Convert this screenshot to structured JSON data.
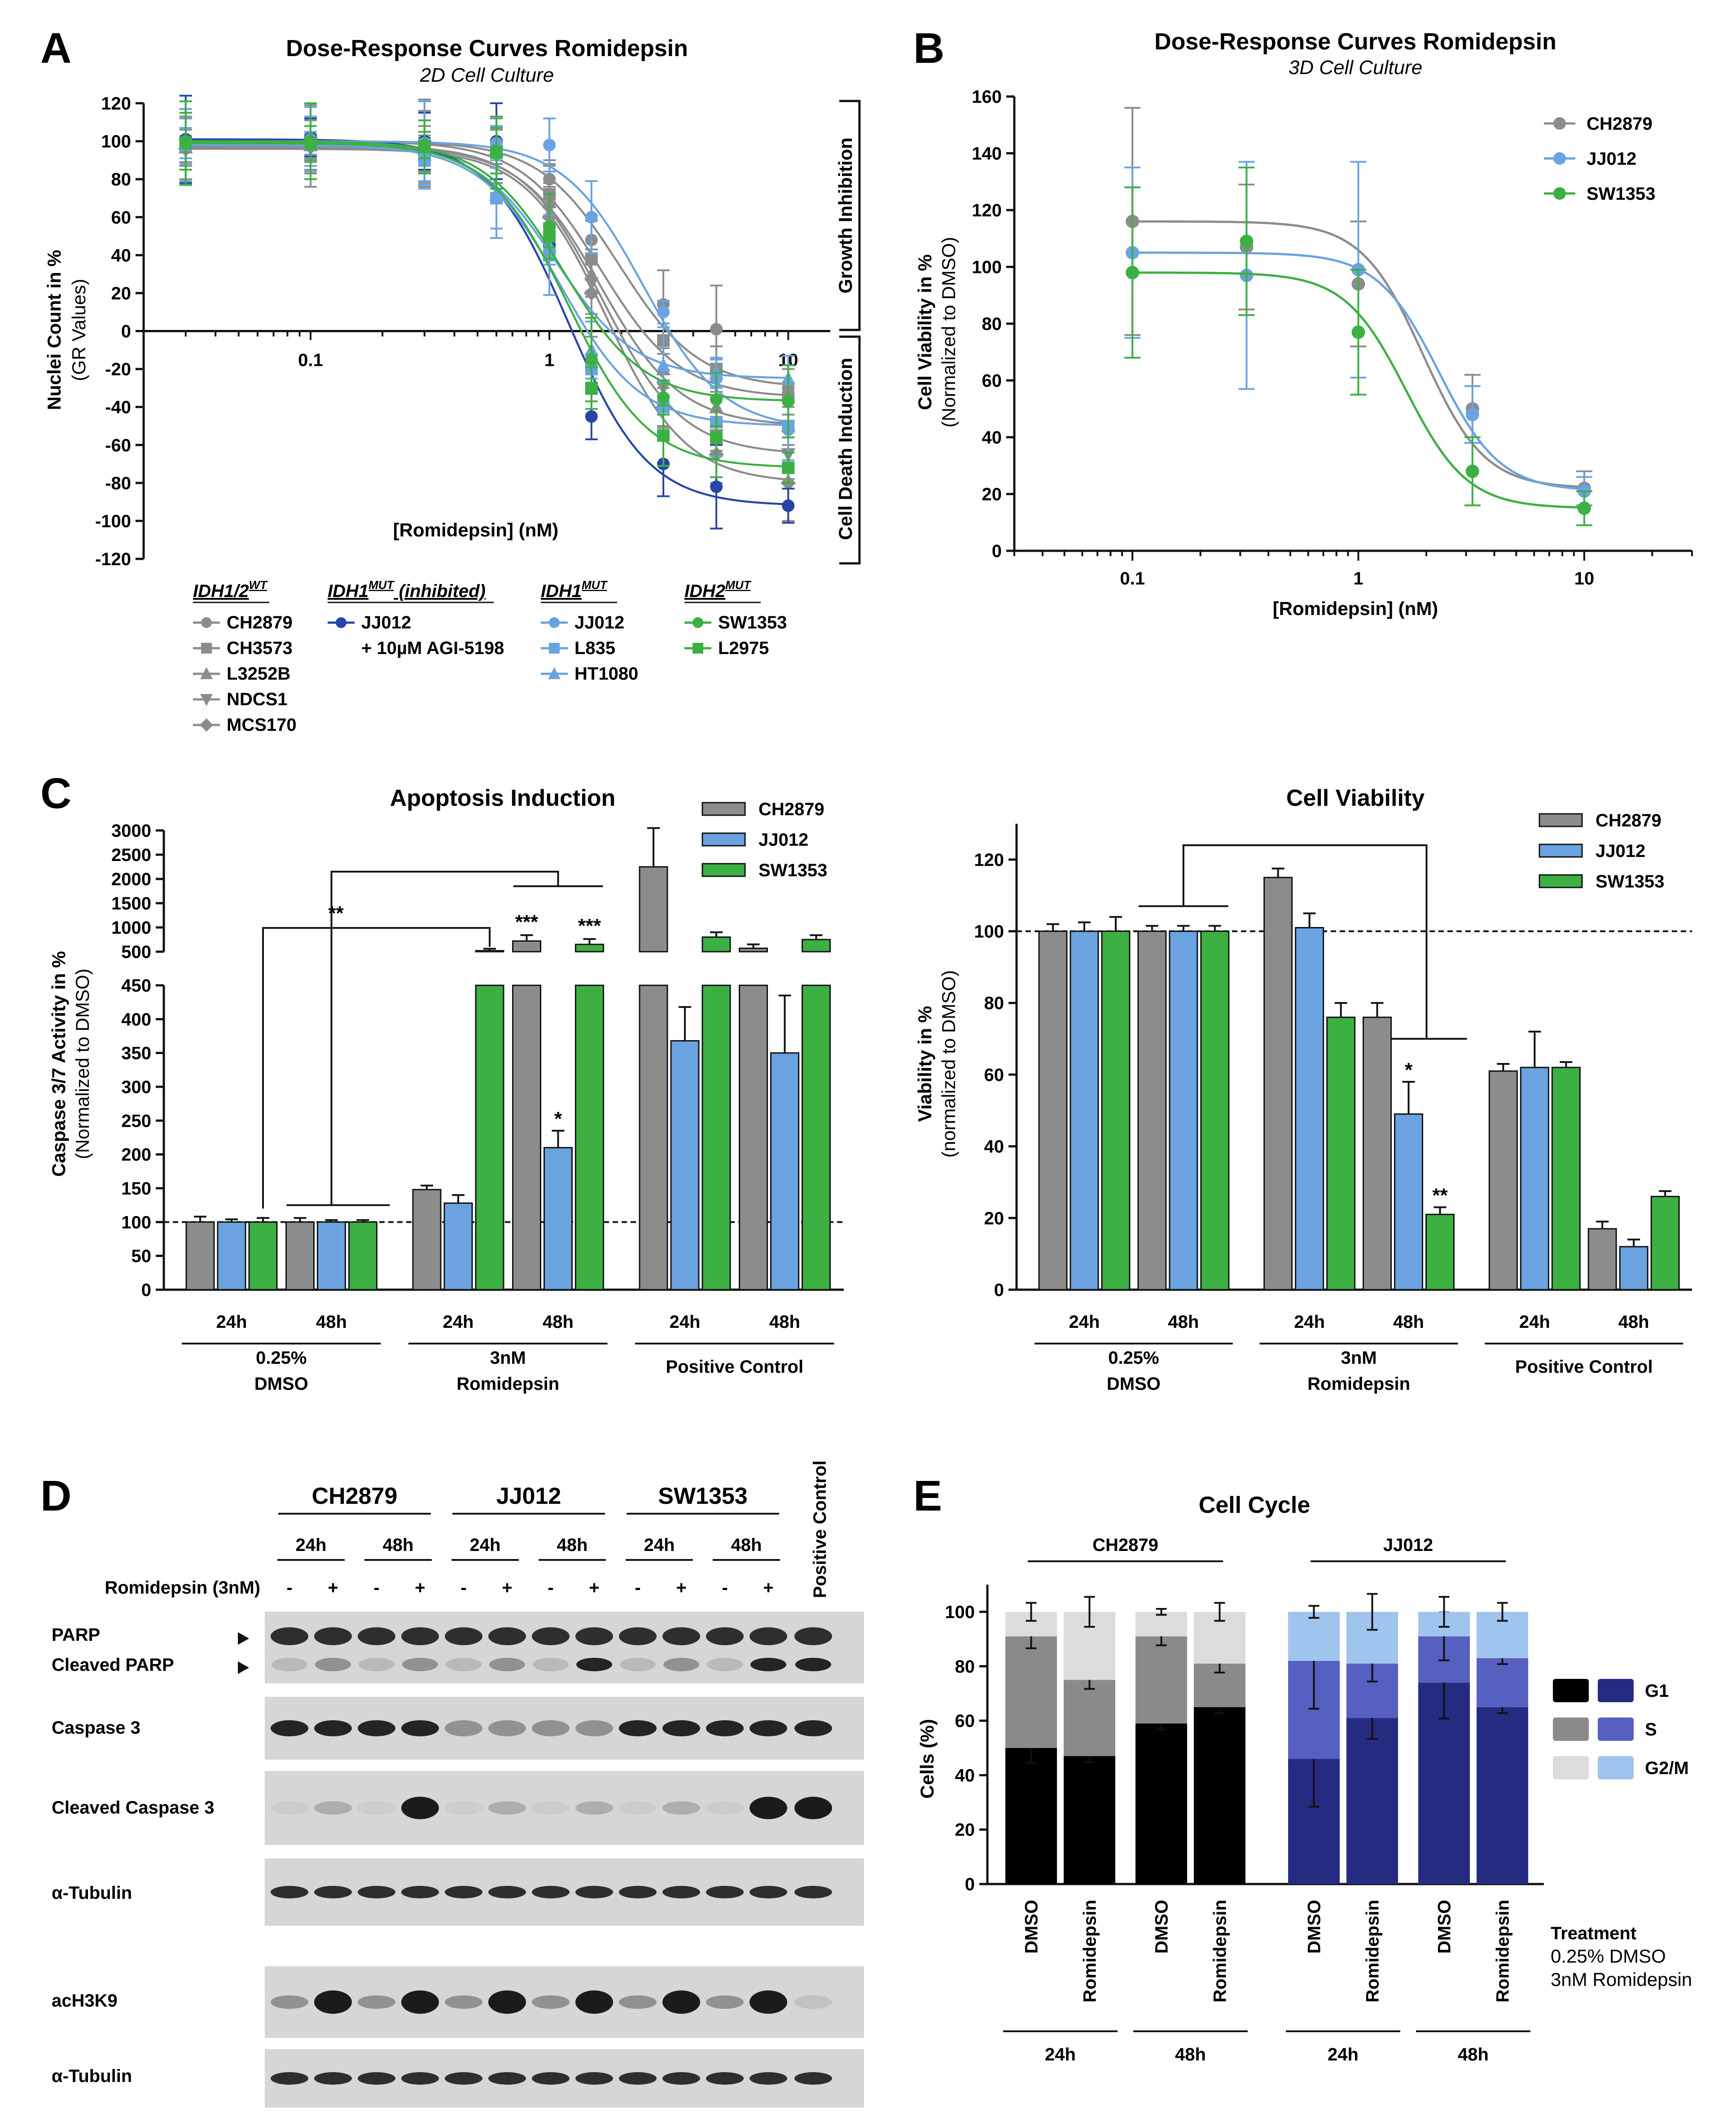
{
  "panels": {
    "A": {
      "letter": "A",
      "title": "Dose-Response Curves Romidepsin",
      "subtitle": "2D Cell Culture",
      "ylabel": "Nuclei Count in %",
      "ylabel2": "(GR Values)",
      "xlabel": "[Romidepsin] (nM)",
      "bracket_top": "Growth Inhibition",
      "bracket_bottom": "Cell Death Induction",
      "yticks": [
        "120",
        "100",
        "80",
        "60",
        "40",
        "20",
        "0",
        "-20",
        "-40",
        "-60",
        "-80",
        "-100",
        "-120"
      ],
      "xticks": [
        "0.1",
        "1",
        "10"
      ],
      "legend_groups": [
        {
          "header": "IDH1/2",
          "sup": "WT",
          "items": [
            "CH2879",
            "CH3573",
            "L3252B",
            "NDCS1",
            "MCS170"
          ]
        },
        {
          "header": "IDH1",
          "sup": "MUT",
          "header_suffix": " (inhibited)",
          "items": [
            "JJ012",
            "+ 10µM AGI-5198"
          ]
        },
        {
          "header": "IDH1",
          "sup": "MUT",
          "items": [
            "JJ012",
            "L835",
            "HT1080"
          ]
        },
        {
          "header": "IDH2",
          "sup": "MUT",
          "items": [
            "SW1353",
            "L2975"
          ]
        }
      ]
    },
    "B": {
      "letter": "B",
      "title": "Dose-Response Curves Romidepsin",
      "subtitle": "3D Cell Culture",
      "ylabel": "Cell Viability in %",
      "ylabel2": "(Normalized to DMSO)",
      "xlabel": "[Romidepsin] (nM)",
      "yticks": [
        "160",
        "140",
        "120",
        "100",
        "80",
        "60",
        "40",
        "20",
        "0"
      ],
      "xticks": [
        "0.1",
        "1",
        "10"
      ],
      "legend": [
        "CH2879",
        "JJ012",
        "SW1353"
      ]
    },
    "C": {
      "letter": "C",
      "title_left": "Apoptosis Induction",
      "title_right": "Cell Viability",
      "ylabel_left": "Caspase 3/7 Activity in %",
      "ylabel_left2": "(Normalized to DMSO)",
      "ylabel_right": "Viability in %",
      "ylabel_right2": "(normalized to DMSO)",
      "yticks_left_upper": [
        "3000",
        "2500",
        "2000",
        "1500",
        "1000",
        "500"
      ],
      "yticks_left_lower": [
        "450",
        "400",
        "350",
        "300",
        "250",
        "200",
        "150",
        "100",
        "50",
        "0"
      ],
      "yticks_right": [
        "120",
        "100",
        "80",
        "60",
        "40",
        "20",
        "0"
      ],
      "legend": [
        "CH2879",
        "JJ012",
        "SW1353"
      ],
      "time_labels": [
        "24h",
        "48h",
        "24h",
        "48h",
        "24h",
        "48h"
      ],
      "group_labels": [
        [
          "0.25%",
          "DMSO"
        ],
        [
          "3nM",
          "Romidepsin"
        ],
        [
          "Positive Control"
        ]
      ],
      "stars": {
        "dmso_cmp": "**",
        "ch48": "***",
        "sw48": "***",
        "jj48": "*",
        "v_jj48": "*",
        "v_sw48": "**"
      }
    },
    "D": {
      "letter": "D",
      "cell_lines": [
        "CH2879",
        "JJ012",
        "SW1353"
      ],
      "times": [
        "24h",
        "48h",
        "24h",
        "48h",
        "24h",
        "48h"
      ],
      "treatment_label": "Romidepsin (3nM)",
      "signs": [
        "-",
        "+",
        "-",
        "+",
        "-",
        "+",
        "-",
        "+",
        "-",
        "+",
        "-",
        "+"
      ],
      "positive_control": "Positive Control",
      "rows": [
        "PARP",
        "Cleaved PARP",
        "Caspase 3",
        "Cleaved Caspase 3",
        "α-Tubulin",
        "acH3K9",
        "α-Tubulin"
      ]
    },
    "E": {
      "letter": "E",
      "title": "Cell Cycle",
      "groups": [
        "CH2879",
        "JJ012"
      ],
      "ylabel": "Cells (%)",
      "yticks": [
        "100",
        "80",
        "60",
        "40",
        "20",
        "0"
      ],
      "bar_labels": [
        "DMSO",
        "Romidepsin",
        "DMSO",
        "Romidepsin",
        "DMSO",
        "Romidepsin",
        "DMSO",
        "Romidepsin"
      ],
      "time_labels": [
        "24h",
        "48h",
        "24h",
        "48h"
      ],
      "legend": [
        "G1",
        "S",
        "G2/M"
      ],
      "treatment_title": "Treatment",
      "treatment_items": [
        "0.25% DMSO",
        "3nM Romidepsin"
      ]
    }
  },
  "chart_data": [
    {
      "type": "scatter",
      "title": "Dose-Response Curves Romidepsin (2D Cell Culture)",
      "xlabel": "[Romidepsin] (nM)",
      "ylabel": "Nuclei Count in % (GR Values)",
      "xscale": "log",
      "xlim": [
        0.02,
        15
      ],
      "ylim": [
        -120,
        120
      ],
      "x": [
        0.03,
        0.1,
        0.3,
        0.6,
        1,
        1.5,
        3,
        5,
        10
      ],
      "series": [
        {
          "name": "CH2879",
          "color": "#8c8c8c",
          "values": [
            100,
            100,
            100,
            99,
            80,
            48,
            14,
            1,
            -30
          ]
        },
        {
          "name": "CH3573",
          "color": "#8c8c8c",
          "values": [
            100,
            101,
            99,
            98,
            72,
            38,
            -5,
            -20,
            -35
          ]
        },
        {
          "name": "L3252B",
          "color": "#8c8c8c",
          "values": [
            97,
            98,
            96,
            95,
            68,
            30,
            -20,
            -40,
            -50
          ]
        },
        {
          "name": "NDCS1",
          "color": "#8c8c8c",
          "values": [
            98,
            99,
            97,
            94,
            65,
            25,
            -30,
            -55,
            -65
          ]
        },
        {
          "name": "MCS170",
          "color": "#8c8c8c",
          "values": [
            96,
            97,
            95,
            93,
            60,
            20,
            -40,
            -65,
            -80
          ]
        },
        {
          "name": "JJ012 + 10µM AGI-5198",
          "color": "#2745a8",
          "values": [
            101,
            102,
            100,
            100,
            45,
            -45,
            -70,
            -82,
            -92
          ]
        },
        {
          "name": "JJ012",
          "color": "#6aa3e0",
          "values": [
            100,
            101,
            99,
            99,
            98,
            60,
            10,
            -25,
            -52
          ]
        },
        {
          "name": "L835",
          "color": "#6aa3e0",
          "values": [
            98,
            99,
            90,
            70,
            40,
            -20,
            -40,
            -48,
            -50
          ]
        },
        {
          "name": "HT1080",
          "color": "#6aa3e0",
          "values": [
            99,
            100,
            93,
            72,
            45,
            -10,
            -18,
            -22,
            -25
          ]
        },
        {
          "name": "SW1353",
          "color": "#3cb043",
          "values": [
            100,
            100,
            98,
            95,
            55,
            -15,
            -35,
            -36,
            -37
          ]
        },
        {
          "name": "L2975",
          "color": "#3cb043",
          "values": [
            99,
            99,
            97,
            94,
            50,
            -30,
            -55,
            -56,
            -72
          ]
        }
      ]
    },
    {
      "type": "scatter",
      "title": "Dose-Response Curves Romidepsin (3D Cell Culture)",
      "xlabel": "[Romidepsin] (nM)",
      "ylabel": "Cell Viability in % (Normalized to DMSO)",
      "xscale": "log",
      "xlim": [
        0.03,
        30
      ],
      "ylim": [
        0,
        160
      ],
      "x": [
        0.1,
        0.32,
        1,
        3.2,
        10
      ],
      "series": [
        {
          "name": "CH2879",
          "color": "#8c8c8c",
          "values": [
            116,
            107,
            94,
            50,
            22
          ],
          "errors": [
            40,
            22,
            22,
            12,
            6
          ]
        },
        {
          "name": "JJ012",
          "color": "#6aa3e0",
          "values": [
            105,
            97,
            99,
            48,
            21
          ],
          "errors": [
            30,
            40,
            38,
            10,
            5
          ]
        },
        {
          "name": "SW1353",
          "color": "#3cb043",
          "values": [
            98,
            109,
            77,
            28,
            15
          ],
          "errors": [
            30,
            26,
            22,
            12,
            6
          ]
        }
      ]
    },
    {
      "type": "bar",
      "title": "Apoptosis Induction",
      "ylabel": "Caspase 3/7 Activity in % (Normalized to DMSO)",
      "categories": [
        "0.25% DMSO 24h",
        "0.25% DMSO 48h",
        "3nM Romidepsin 24h",
        "3nM Romidepsin 48h",
        "Positive Control 24h",
        "Positive Control 48h"
      ],
      "series": [
        {
          "name": "CH2879",
          "color": "#8c8c8c",
          "values": [
            100,
            100,
            148,
            720,
            2250,
            570
          ],
          "errors": [
            8,
            6,
            6,
            120,
            800,
            80
          ]
        },
        {
          "name": "JJ012",
          "color": "#6aa3e0",
          "values": [
            100,
            100,
            128,
            210,
            368,
            350
          ],
          "errors": [
            4,
            3,
            12,
            25,
            50,
            85
          ]
        },
        {
          "name": "SW1353",
          "color": "#3cb043",
          "values": [
            100,
            100,
            520,
            650,
            800,
            750
          ],
          "errors": [
            6,
            3,
            40,
            110,
            100,
            90
          ]
        }
      ],
      "axis_break": [
        450,
        500
      ],
      "ylim": [
        0,
        3000
      ]
    },
    {
      "type": "bar",
      "title": "Cell Viability",
      "ylabel": "Viability in % (normalized to DMSO)",
      "categories": [
        "0.25% DMSO 24h",
        "0.25% DMSO 48h",
        "3nM Romidepsin 24h",
        "3nM Romidepsin 48h",
        "Positive Control 24h",
        "Positive Control 48h"
      ],
      "series": [
        {
          "name": "CH2879",
          "color": "#8c8c8c",
          "values": [
            100,
            100,
            115,
            76,
            61,
            17
          ],
          "errors": [
            2,
            1.5,
            2.5,
            4,
            2,
            2
          ]
        },
        {
          "name": "JJ012",
          "color": "#6aa3e0",
          "values": [
            100,
            100,
            101,
            49,
            62,
            12
          ],
          "errors": [
            2.5,
            1.5,
            4,
            9,
            10,
            2
          ]
        },
        {
          "name": "SW1353",
          "color": "#3cb043",
          "values": [
            100,
            100,
            76,
            21,
            62,
            26
          ],
          "errors": [
            4,
            1.5,
            4,
            2,
            1.5,
            1.5
          ]
        }
      ],
      "ylim": [
        0,
        130
      ]
    },
    {
      "type": "bar",
      "stacked": true,
      "title": "Cell Cycle",
      "ylabel": "Cells (%)",
      "categories": [
        "CH2879 24h DMSO",
        "CH2879 24h Romidepsin",
        "CH2879 48h DMSO",
        "CH2879 48h Romidepsin",
        "JJ012 24h DMSO",
        "JJ012 24h Romidepsin",
        "JJ012 48h DMSO",
        "JJ012 48h Romidepsin"
      ],
      "series": [
        {
          "name": "G1",
          "values": [
            50,
            47,
            59,
            65,
            46,
            61,
            74,
            65
          ]
        },
        {
          "name": "S",
          "values": [
            41,
            28,
            32,
            16,
            36,
            20,
            17,
            18
          ]
        },
        {
          "name": "G2/M",
          "values": [
            9,
            25,
            9,
            19,
            18,
            19,
            9,
            17
          ]
        }
      ],
      "ylim": [
        0,
        110
      ]
    }
  ],
  "colors": {
    "gray": "#8c8c8c",
    "lightblue": "#6aa3e0",
    "darkblue": "#2745a8",
    "green": "#3cb043",
    "g1_ch": "#000000",
    "s_ch": "#8a8a8a",
    "g2_ch": "#dcdcdc",
    "g1_jj": "#262b82",
    "s_jj": "#5560c0",
    "g2_jj": "#9fc4ee"
  }
}
